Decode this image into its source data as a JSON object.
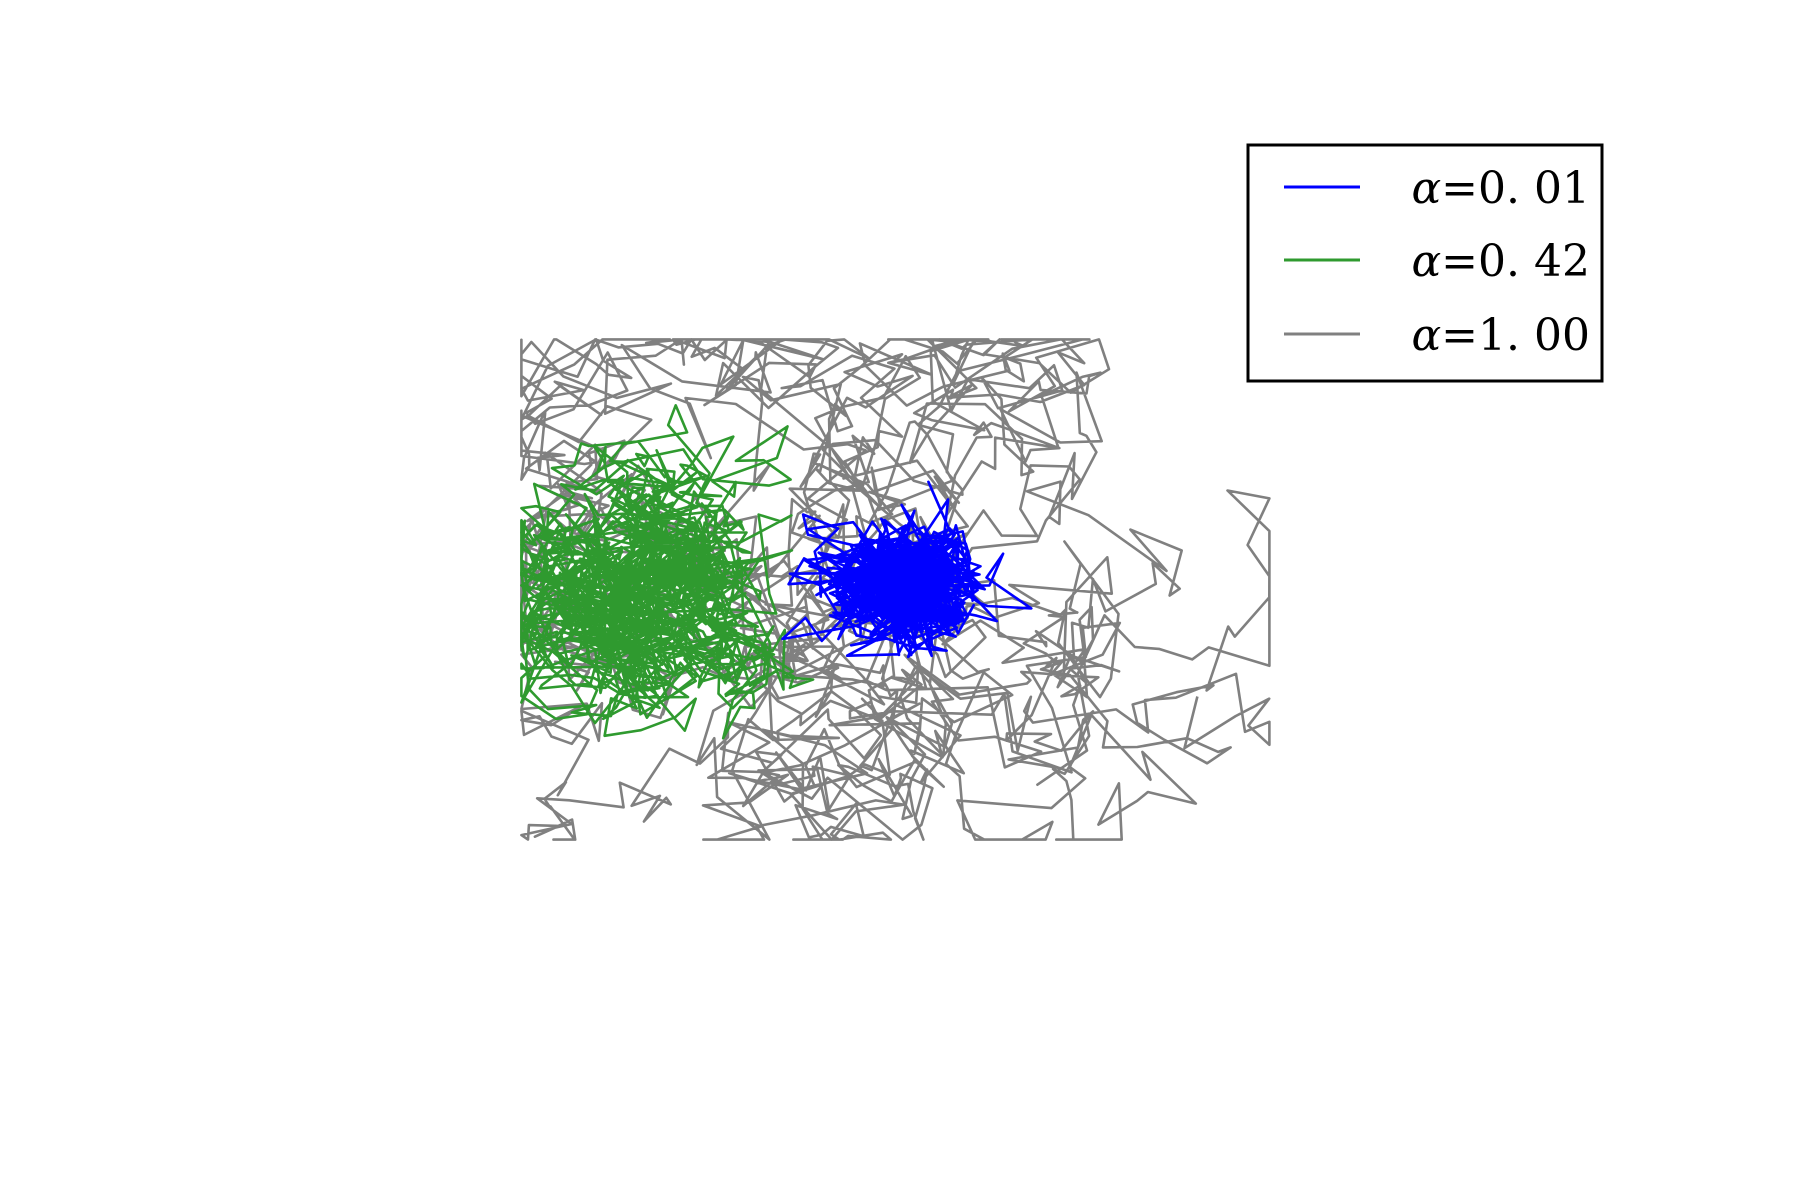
{
  "chart_data": {
    "type": "line",
    "title": "",
    "xlabel": "",
    "ylabel": "",
    "axes_visible": false,
    "grid": false,
    "legend": {
      "position": "top-right",
      "framed": true
    },
    "xlim": [
      -15,
      15
    ],
    "ylim": [
      -12,
      12
    ],
    "series": [
      {
        "name": "α=0.01",
        "symbol": "α",
        "value_text": "=0. 01",
        "color": "#0000ff",
        "alpha_value": 0.01,
        "kind": "random-walk",
        "walk": {
          "seed": 7,
          "steps": 900,
          "step": 0.55,
          "reversion": 0.35,
          "start": [
            0.5,
            0.2
          ],
          "center": [
            0.6,
            0.0
          ]
        }
      },
      {
        "name": "α=0.42",
        "symbol": "α",
        "value_text": "=0. 42",
        "color": "#2f9a2f",
        "alpha_value": 0.42,
        "kind": "random-walk",
        "walk": {
          "seed": 21,
          "steps": 1400,
          "step": 0.55,
          "reversion": 0.055,
          "start": [
            -5.5,
            0.0
          ],
          "center": [
            -5.5,
            0.0
          ]
        }
      },
      {
        "name": "α=1.00",
        "symbol": "α",
        "value_text": "=1. 00",
        "color": "#808080",
        "alpha_value": 1.0,
        "kind": "random-walk",
        "walk": {
          "seed": 3,
          "steps": 1200,
          "step": 0.75,
          "reversion": 0.004,
          "start": [
            0.5,
            0.2
          ],
          "center": [
            0.0,
            0.0
          ]
        }
      }
    ]
  }
}
